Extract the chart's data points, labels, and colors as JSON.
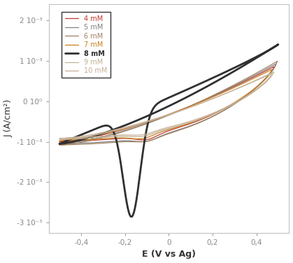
{
  "xlabel": "E (V vs Ag)",
  "ylabel": "J (A/cm²)",
  "xlim": [
    -0.55,
    0.55
  ],
  "ylim": [
    -0.00325,
    0.0024
  ],
  "ytick_vals": [
    -0.003,
    -0.002,
    -0.001,
    0.0,
    0.001,
    0.002
  ],
  "ytick_labels": [
    "-3 10⁻³",
    "-2 10⁻³",
    "-1 10⁻³",
    "0 10⁰",
    "1 10⁻³",
    "2 10⁻³"
  ],
  "xtick_vals": [
    -0.4,
    -0.2,
    0.0,
    0.2,
    0.4
  ],
  "xtick_labels": [
    "-0,4",
    "-0,2",
    "0",
    "0,2",
    "0,4"
  ],
  "legend_labels": [
    "4 mM",
    "5 mM",
    "6 mM",
    "7 mM",
    "8 mM",
    "9 mM",
    "10 mM"
  ],
  "colors": [
    "#c0392b",
    "#808080",
    "#a08060",
    "#c88020",
    "#303030",
    "#c0b090",
    "#c8b098"
  ],
  "linewidths": [
    0.9,
    0.9,
    0.9,
    0.9,
    2.0,
    0.9,
    0.9
  ],
  "legend_fontsize": 7,
  "tick_fontsize": 7.5,
  "axis_label_fontsize": 9
}
